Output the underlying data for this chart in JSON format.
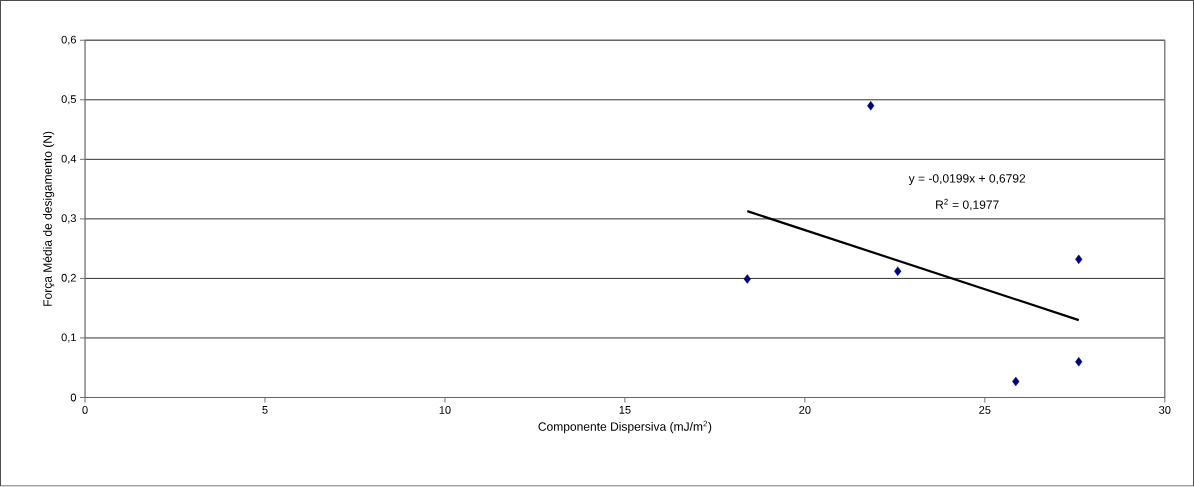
{
  "chart_data": {
    "type": "scatter",
    "xlabel": "Componente Dispersiva (mJ/m$^{2}$)",
    "ylabel": "Força Média de desigamento (N)",
    "xlim": [
      0,
      30
    ],
    "xticks": [
      0,
      5,
      10,
      15,
      20,
      25,
      30
    ],
    "ylim": [
      0,
      0.6
    ],
    "yticks": [
      0,
      {
        "value": 0.1,
        "label": "0,1"
      },
      {
        "value": 0.2,
        "label": "0,2"
      },
      {
        "value": 0.3,
        "label": "0,3"
      },
      {
        "value": 0.4,
        "label": "0,4"
      },
      {
        "value": 0.5,
        "label": "0,5"
      },
      {
        "value": 0.6,
        "label": "0,6"
      }
    ],
    "grid": "y",
    "marker": "diamond",
    "series": [
      {
        "color": "#000080",
        "x": [
          18.4,
          21.83,
          22.58,
          27.61,
          27.61,
          25.86
        ],
        "values": [
          0.199,
          0.49,
          0.212,
          0.232,
          0.06,
          0.027
        ]
      },
      {
        "type": "line",
        "color": "#000000",
        "marker": "none",
        "x": [
          18.4,
          27.61
        ],
        "values": [
          0.313,
          0.13
        ]
      }
    ],
    "annotations": [
      "y = -0,0199x + 0,6792",
      "R$^{2}$ = 0,1977"
    ]
  }
}
